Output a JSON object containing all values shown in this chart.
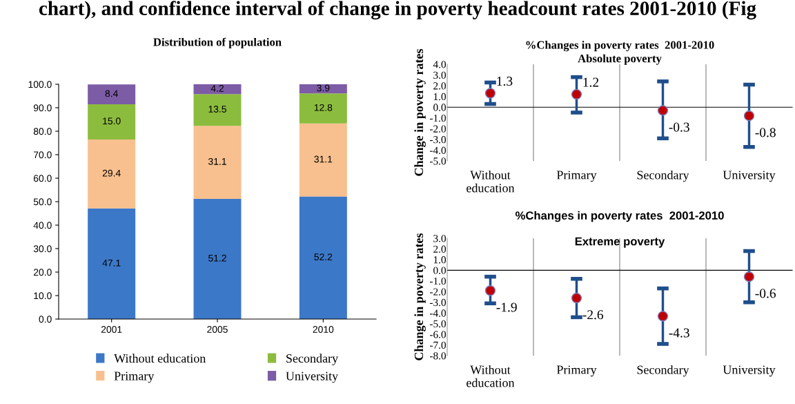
{
  "chart_data": [
    {
      "type": "bar",
      "title": "Distribution of population",
      "stacked": true,
      "categories": [
        "2001",
        "2005",
        "2010"
      ],
      "series": [
        {
          "name": "Without education",
          "color": "#3c78c8",
          "values": [
            47.1,
            51.2,
            52.2
          ],
          "value_labels": [
            "47.1",
            "51.2",
            "52.2"
          ]
        },
        {
          "name": "Primary",
          "color": "#f8c08e",
          "values": [
            29.4,
            31.1,
            31.1
          ],
          "value_labels": [
            "29.4",
            "31.1",
            "31.1"
          ]
        },
        {
          "name": "Secondary",
          "color": "#8cbc3e",
          "values": [
            15.0,
            13.5,
            12.8
          ],
          "value_labels": [
            "15.0",
            "13.5",
            "12.8"
          ]
        },
        {
          "name": "University",
          "color": "#7d5ca6",
          "values": [
            8.4,
            4.2,
            3.9
          ],
          "value_labels": [
            "8.4",
            "4.2",
            "3.9"
          ]
        }
      ],
      "ylim": [
        0,
        100
      ],
      "yticks": [
        {
          "value": 0,
          "label": "0.0"
        },
        {
          "value": 10,
          "label": "10.0"
        },
        {
          "value": 20,
          "label": "20.0"
        },
        {
          "value": 30,
          "label": "30.0"
        },
        {
          "value": 40,
          "label": "40.0"
        },
        {
          "value": 50,
          "label": "50.0"
        },
        {
          "value": 60,
          "label": "60.0"
        },
        {
          "value": 70,
          "label": "70.0"
        },
        {
          "value": 80,
          "label": "80.0"
        },
        {
          "value": 90,
          "label": "90.0"
        },
        {
          "value": 100,
          "label": "100.0"
        }
      ],
      "legend": "bottom",
      "grid": false,
      "annotations": [
        "chart), and confidence interval of change in poverty headcount rates 2001-2010 (Fig"
      ]
    },
    {
      "type": "scatter",
      "title": "%Changes in poverty rates  2001-2010",
      "subtitle": "Absolute poverty",
      "ylabel": "Change in poverty rates",
      "categories": [
        "Without\neducation",
        "Primary",
        "Secondary",
        "University"
      ],
      "values": [
        1.3,
        1.2,
        -0.3,
        -0.8
      ],
      "errors": [
        [
          0.3,
          2.3
        ],
        [
          -0.5,
          2.8
        ],
        [
          -2.9,
          2.4
        ],
        [
          -3.7,
          2.1
        ]
      ],
      "color": "#c00000",
      "marker": "circle",
      "data_labels": true,
      "grid": "x",
      "ylim": [
        -5,
        4
      ],
      "yticks": [
        {
          "value": 4,
          "label": "4.0"
        },
        {
          "value": 3,
          "label": "3.0"
        },
        {
          "value": 2,
          "label": "2.0"
        },
        {
          "value": 1,
          "label": "1.0"
        },
        {
          "value": 0,
          "label": "0.0"
        },
        {
          "value": -1,
          "label": "-1.0"
        },
        {
          "value": -2,
          "label": "-2.0"
        },
        {
          "value": -3,
          "label": "-3.0"
        },
        {
          "value": -4,
          "label": "-4.0"
        },
        {
          "value": -5,
          "label": "-5.0"
        }
      ]
    },
    {
      "type": "scatter",
      "title": "%Changes in poverty rates  2001-2010",
      "subtitle": "Extreme poverty",
      "ylabel": "Change in poverty rates",
      "categories": [
        "Without\neducation",
        "Primary",
        "Secondary",
        "University"
      ],
      "values": [
        -1.9,
        -2.6,
        -4.3,
        -0.6
      ],
      "errors": [
        [
          -3.1,
          -0.6
        ],
        [
          -4.4,
          -0.8
        ],
        [
          -6.9,
          -1.7
        ],
        [
          -3.0,
          1.8
        ]
      ],
      "color": "#c00000",
      "marker": "circle",
      "data_labels": true,
      "grid": "x",
      "ylim": [
        -8,
        3
      ],
      "yticks": [
        {
          "value": 3,
          "label": "3.0"
        },
        {
          "value": 2,
          "label": "2.0"
        },
        {
          "value": 1,
          "label": "1.0"
        },
        {
          "value": 0,
          "label": "0.0"
        },
        {
          "value": -1,
          "label": "-1.0"
        },
        {
          "value": -2,
          "label": "-2.0"
        },
        {
          "value": -3,
          "label": "-3.0"
        },
        {
          "value": -4,
          "label": "-4.0"
        },
        {
          "value": -5,
          "label": "-5.0"
        },
        {
          "value": -6,
          "label": "-6.0"
        },
        {
          "value": -7,
          "label": "-7.0"
        },
        {
          "value": -8,
          "label": "-8.0"
        }
      ]
    }
  ]
}
